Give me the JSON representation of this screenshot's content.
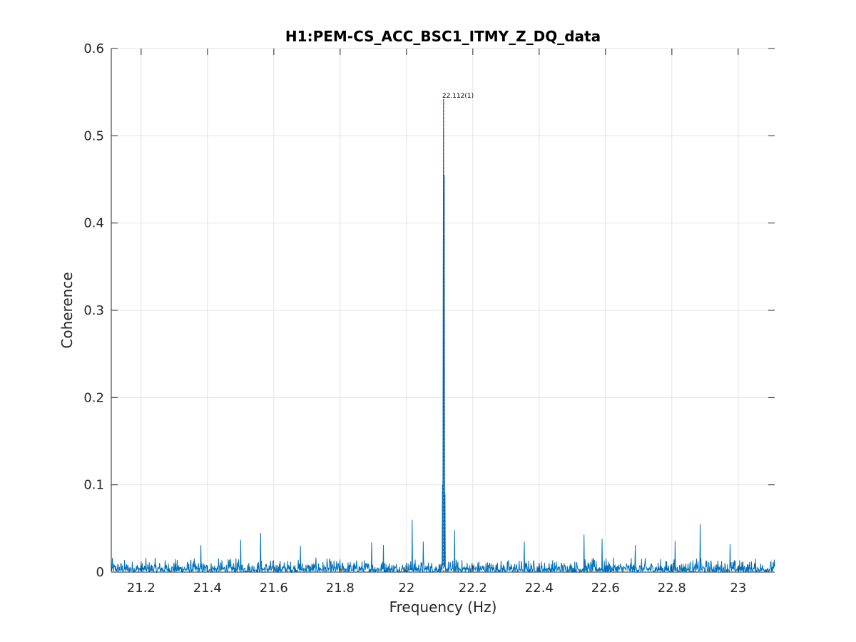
{
  "chart_data": {
    "type": "line",
    "title": "H1:PEM-CS_ACC_BSC1_ITMY_Z_DQ_data",
    "xlabel": "Frequency (Hz)",
    "ylabel": "Coherence",
    "xlim": [
      21.11,
      23.11
    ],
    "ylim": [
      0,
      0.6
    ],
    "x_ticks": [
      21.2,
      21.4,
      21.6,
      21.8,
      22,
      22.2,
      22.4,
      22.6,
      22.8,
      23
    ],
    "x_tick_labels": [
      "21.2",
      "21.4",
      "21.6",
      "21.8",
      "22",
      "22.2",
      "22.4",
      "22.6",
      "22.8",
      "23"
    ],
    "y_ticks": [
      0,
      0.1,
      0.2,
      0.3,
      0.4,
      0.5,
      0.6
    ],
    "y_tick_labels": [
      "0",
      "0.1",
      "0.2",
      "0.3",
      "0.4",
      "0.5",
      "0.6"
    ],
    "grid": true,
    "series_color": "#0072BD",
    "marker_color": "#C00000",
    "noise_floor": 0.008,
    "peaks": [
      {
        "x": 22.112,
        "y": 0.542
      },
      {
        "x": 22.114,
        "y": 0.455
      },
      {
        "x": 22.11,
        "y": 0.32
      },
      {
        "x": 22.108,
        "y": 0.1
      },
      {
        "x": 22.116,
        "y": 0.09
      },
      {
        "x": 22.017,
        "y": 0.06
      },
      {
        "x": 22.145,
        "y": 0.048
      },
      {
        "x": 21.56,
        "y": 0.045
      },
      {
        "x": 22.885,
        "y": 0.055
      },
      {
        "x": 22.535,
        "y": 0.043
      },
      {
        "x": 21.895,
        "y": 0.034
      },
      {
        "x": 21.5,
        "y": 0.037
      },
      {
        "x": 22.355,
        "y": 0.035
      },
      {
        "x": 22.59,
        "y": 0.038
      },
      {
        "x": 22.81,
        "y": 0.036
      },
      {
        "x": 22.05,
        "y": 0.035
      },
      {
        "x": 21.93,
        "y": 0.031
      },
      {
        "x": 21.38,
        "y": 0.031
      },
      {
        "x": 21.68,
        "y": 0.03
      },
      {
        "x": 22.69,
        "y": 0.031
      },
      {
        "x": 22.975,
        "y": 0.032
      }
    ],
    "annotation": {
      "text": "22.112(1)",
      "x": 22.112,
      "y": 0.542
    }
  }
}
